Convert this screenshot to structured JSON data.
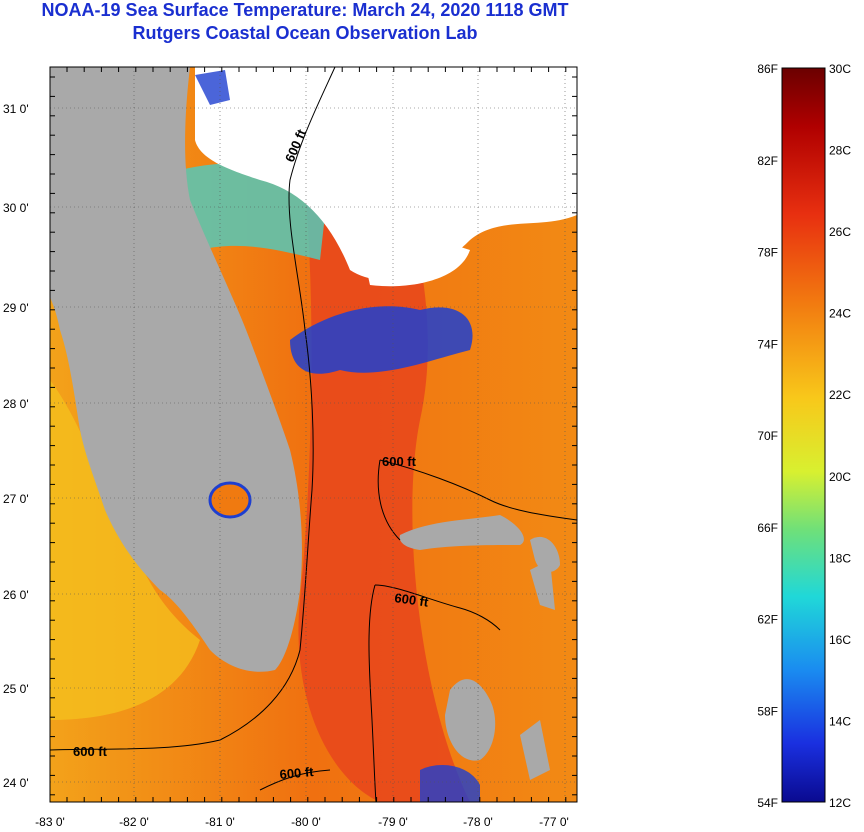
{
  "title": {
    "line1": "NOAA-19 Sea Surface Temperature:  March 24, 2020 1118 GMT",
    "line2": "Rutgers Coastal Ocean Observation Lab"
  },
  "map": {
    "lat_labels": [
      "31 0'",
      "30 0'",
      "29 0'",
      "28 0'",
      "27 0'",
      "26 0'",
      "25 0'",
      "24 0'"
    ],
    "lon_labels": [
      "-83 0'",
      "-82 0'",
      "-81 0'",
      "-80 0'",
      "-79 0'",
      "-78 0'",
      "-77 0'"
    ],
    "contour_label": "600 ft",
    "colors": {
      "land": "#a9a9a9",
      "cloud": "#ffffff",
      "warm": "#f07a10",
      "hot": "#e8431a",
      "cool": "#f3c019",
      "cold": "#1e3fd0"
    }
  },
  "colorbar": {
    "f_labels": [
      "86F",
      "82F",
      "78F",
      "74F",
      "70F",
      "66F",
      "62F",
      "58F",
      "54F"
    ],
    "c_labels": [
      "30C",
      "28C",
      "26C",
      "24C",
      "22C",
      "20C",
      "18C",
      "16C",
      "14C",
      "12C"
    ]
  }
}
